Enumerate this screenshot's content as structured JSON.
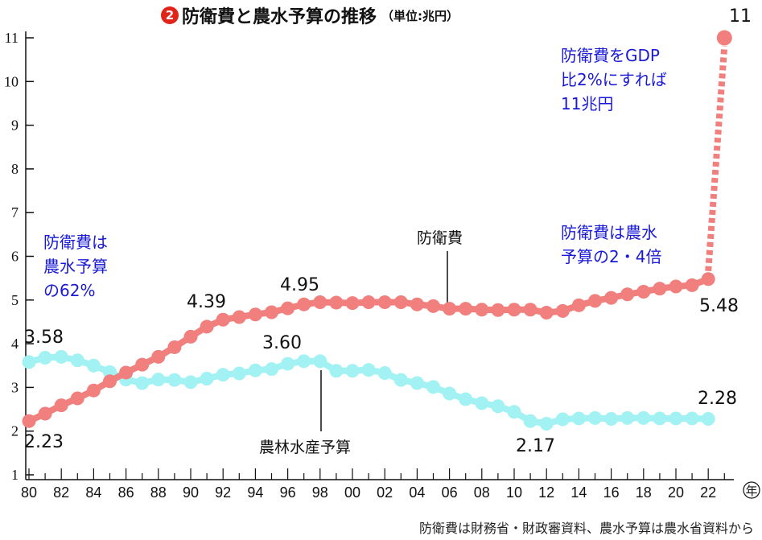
{
  "title": {
    "badge": "2",
    "text": "防衛費と農水予算の推移",
    "unit": "（単位:兆円）"
  },
  "notes": {
    "gdp": [
      "防衛費をGDP",
      "比2%にすれば",
      "11兆円"
    ],
    "ratio_2_4": [
      "防衛費は農水",
      "予算の2・4倍"
    ],
    "ratio_62": [
      "防衛費は",
      "農水予算",
      "の62%"
    ]
  },
  "labels": {
    "defense_series": "防衛費",
    "agri_series": "農林水産予算",
    "v_11": "11",
    "v_548": "5.48",
    "v_495": "4.95",
    "v_439": "4.39",
    "v_358": "3.58",
    "v_360": "3.60",
    "v_223": "2.23",
    "v_217": "2.17",
    "v_228": "2.28"
  },
  "source": "防衛費は財務省・財政審資料、農水予算は農水省資料から",
  "colors": {
    "defense": "#f07f7d",
    "agri": "#a2f2f4",
    "axis": "#111111",
    "note_text": "#1a1ad6"
  },
  "chart_data": {
    "type": "line",
    "x": [
      1980,
      1981,
      1982,
      1983,
      1984,
      1985,
      1986,
      1987,
      1988,
      1989,
      1990,
      1991,
      1992,
      1993,
      1994,
      1995,
      1996,
      1997,
      1998,
      1999,
      2000,
      2001,
      2002,
      2003,
      2004,
      2005,
      2006,
      2007,
      2008,
      2009,
      2010,
      2011,
      2012,
      2013,
      2014,
      2015,
      2016,
      2017,
      2018,
      2019,
      2020,
      2021,
      2022
    ],
    "x_tick_labels": [
      "80",
      "82",
      "84",
      "86",
      "88",
      "90",
      "92",
      "94",
      "96",
      "98",
      "00",
      "02",
      "04",
      "06",
      "08",
      "10",
      "12",
      "14",
      "16",
      "18",
      "20",
      "22"
    ],
    "x_unit": "年",
    "ylim": [
      1,
      11
    ],
    "y_ticks": [
      1,
      2,
      3,
      4,
      5,
      6,
      7,
      8,
      9,
      10,
      11
    ],
    "series": [
      {
        "name": "防衛費",
        "values": [
          2.23,
          2.4,
          2.59,
          2.75,
          2.93,
          3.14,
          3.34,
          3.52,
          3.7,
          3.92,
          4.16,
          4.39,
          4.55,
          4.61,
          4.67,
          4.72,
          4.81,
          4.9,
          4.95,
          4.94,
          4.93,
          4.95,
          4.95,
          4.95,
          4.9,
          4.86,
          4.8,
          4.8,
          4.78,
          4.77,
          4.78,
          4.78,
          4.71,
          4.75,
          4.88,
          4.98,
          5.05,
          5.13,
          5.19,
          5.26,
          5.31,
          5.34,
          5.48
        ],
        "projection": {
          "x": 2023,
          "value": 11
        }
      },
      {
        "name": "農林水産予算",
        "values": [
          3.58,
          3.68,
          3.7,
          3.62,
          3.5,
          3.35,
          3.18,
          3.1,
          3.18,
          3.17,
          3.12,
          3.2,
          3.29,
          3.32,
          3.39,
          3.42,
          3.54,
          3.6,
          3.6,
          3.38,
          3.38,
          3.4,
          3.33,
          3.17,
          3.1,
          3.01,
          2.86,
          2.73,
          2.64,
          2.57,
          2.44,
          2.23,
          2.17,
          2.27,
          2.29,
          2.3,
          2.28,
          2.3,
          2.3,
          2.29,
          2.29,
          2.29,
          2.28
        ]
      }
    ]
  }
}
